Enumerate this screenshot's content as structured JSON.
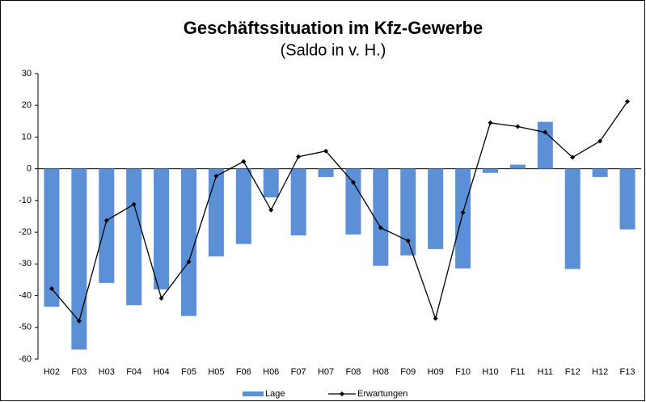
{
  "chart_data": {
    "type": "bar_line",
    "title": "Geschäftssituation im Kfz-Gewerbe",
    "subtitle": "(Saldo in v. H.)",
    "categories": [
      "H02",
      "F03",
      "H03",
      "F04",
      "H04",
      "F05",
      "H05",
      "F06",
      "H06",
      "F07",
      "H07",
      "F08",
      "H08",
      "F09",
      "H09",
      "F10",
      "H10",
      "F11",
      "H11",
      "F12",
      "H12",
      "F13"
    ],
    "series": [
      {
        "name": "Lage",
        "type": "bar",
        "color": "#5b8fd6",
        "values": [
          -43.5,
          -57,
          -36,
          -43,
          -38,
          -46.4,
          -27.6,
          -23.7,
          -9,
          -21,
          -2.6,
          -20.7,
          -30.6,
          -27.3,
          -25.3,
          -31.4,
          -1.3,
          1.3,
          14.8,
          -31.6,
          -2.6,
          -19.1
        ]
      },
      {
        "name": "Erwartungen",
        "type": "line",
        "color": "#000000",
        "values": [
          -37.8,
          -48,
          -16.3,
          -11.2,
          -40.8,
          -29.3,
          -2.3,
          2.3,
          -13,
          3.8,
          5.6,
          -4.3,
          -18.6,
          -22.7,
          -47.2,
          -13.8,
          14.5,
          13.3,
          11.5,
          3.6,
          8.7,
          21.2
        ]
      }
    ],
    "ylim": [
      -60,
      30
    ],
    "yticks": [
      -60,
      -50,
      -40,
      -30,
      -20,
      -10,
      0,
      10,
      20,
      30
    ],
    "legend": "bottom"
  }
}
